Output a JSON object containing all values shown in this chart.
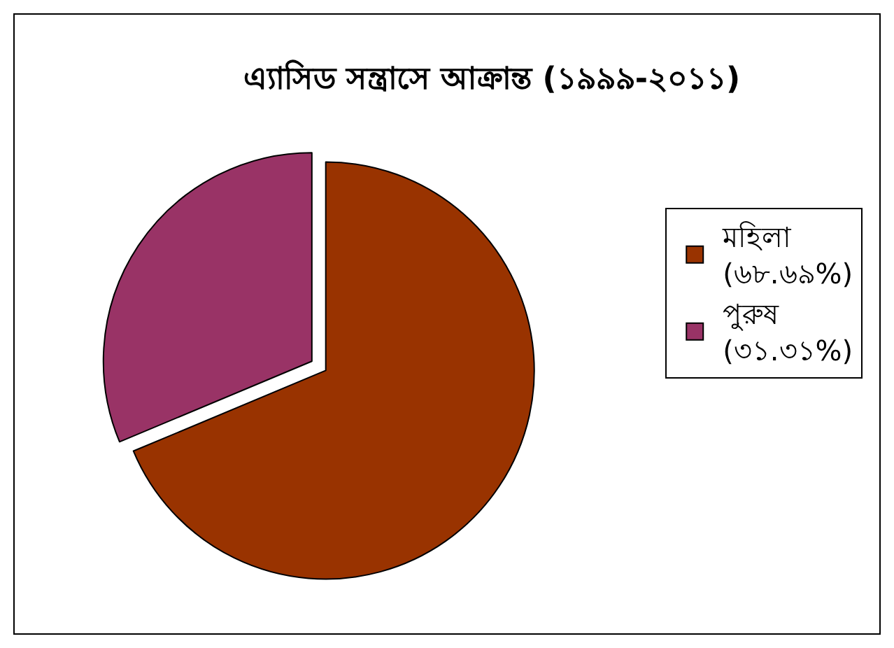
{
  "chart_data": {
    "type": "pie",
    "title": "এ্যাসিড সন্ত্রাসে আক্রান্ত (১৯৯৯-২০১১)",
    "categories": [
      "মহিলা",
      "পুরুষ"
    ],
    "values": [
      68.69,
      31.31
    ],
    "value_labels": [
      "(৬৮.৬৯%)",
      "(৩১.৩১%)"
    ],
    "colors": [
      "#993300",
      "#993366"
    ],
    "legend": "right"
  }
}
